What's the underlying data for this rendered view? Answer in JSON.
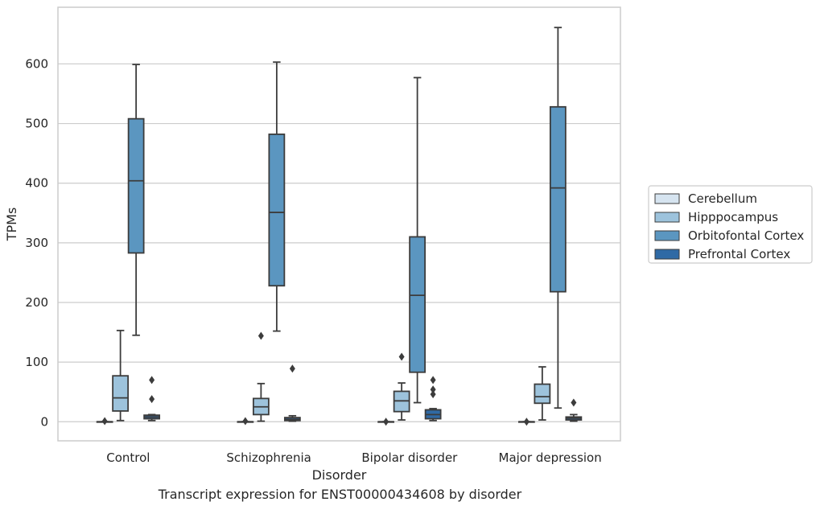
{
  "caption": "Transcript expression for ENST00000434608 by disorder",
  "chart_data": {
    "type": "box",
    "title": "",
    "xlabel": "Disorder",
    "ylabel": "TPMs",
    "ylim": [
      -32,
      695
    ],
    "yticks": [
      0,
      100,
      200,
      300,
      400,
      500,
      600
    ],
    "grid": "horizontal",
    "legend_position": "right",
    "categories": [
      "Control",
      "Schizophrenia",
      "Bipolar disorder",
      "Major depression"
    ],
    "series": [
      {
        "name": "Cerebellum",
        "color": "#d6e4f0",
        "boxes": [
          {
            "q1": 0,
            "median": 0,
            "q3": 0,
            "whisker_low": 0,
            "whisker_high": 0,
            "outliers": [
              1
            ]
          },
          {
            "q1": 0,
            "median": 0,
            "q3": 0,
            "whisker_low": 0,
            "whisker_high": 0,
            "outliers": [
              1
            ]
          },
          {
            "q1": 0,
            "median": 0,
            "q3": 0,
            "whisker_low": 0,
            "whisker_high": 0,
            "outliers": [
              0
            ]
          },
          {
            "q1": 0,
            "median": 0,
            "q3": 0,
            "whisker_low": 0,
            "whisker_high": 0,
            "outliers": [
              0
            ]
          }
        ]
      },
      {
        "name": "Hipppocampus",
        "color": "#9dc3dc",
        "boxes": [
          {
            "q1": 18,
            "median": 40,
            "q3": 77,
            "whisker_low": 2,
            "whisker_high": 153,
            "outliers": []
          },
          {
            "q1": 12,
            "median": 25,
            "q3": 39,
            "whisker_low": 1,
            "whisker_high": 64,
            "outliers": [
              144
            ]
          },
          {
            "q1": 17,
            "median": 35,
            "q3": 51,
            "whisker_low": 3,
            "whisker_high": 65,
            "outliers": [
              109
            ]
          },
          {
            "q1": 31,
            "median": 42,
            "q3": 63,
            "whisker_low": 3,
            "whisker_high": 92,
            "outliers": []
          }
        ]
      },
      {
        "name": "Orbitofontal Cortex",
        "color": "#5b96c0",
        "boxes": [
          {
            "q1": 283,
            "median": 404,
            "q3": 508,
            "whisker_low": 145,
            "whisker_high": 599,
            "outliers": []
          },
          {
            "q1": 228,
            "median": 351,
            "q3": 482,
            "whisker_low": 152,
            "whisker_high": 603,
            "outliers": []
          },
          {
            "q1": 83,
            "median": 212,
            "q3": 310,
            "whisker_low": 32,
            "whisker_high": 577,
            "outliers": []
          },
          {
            "q1": 218,
            "median": 392,
            "q3": 528,
            "whisker_low": 23,
            "whisker_high": 661,
            "outliers": []
          }
        ]
      },
      {
        "name": "Prefrontal Cortex",
        "color": "#2f6aa5",
        "boxes": [
          {
            "q1": 5,
            "median": 8,
            "q3": 11,
            "whisker_low": 2,
            "whisker_high": 12,
            "outliers": [
              70,
              38
            ]
          },
          {
            "q1": 2,
            "median": 4,
            "q3": 7,
            "whisker_low": 1,
            "whisker_high": 10,
            "outliers": [
              89
            ]
          },
          {
            "q1": 5,
            "median": 12,
            "q3": 20,
            "whisker_low": 2,
            "whisker_high": 22,
            "outliers": [
              70,
              54,
              46
            ]
          },
          {
            "q1": 3,
            "median": 6,
            "q3": 8,
            "whisker_low": 1,
            "whisker_high": 12,
            "outliers": [
              32
            ]
          }
        ]
      }
    ]
  }
}
